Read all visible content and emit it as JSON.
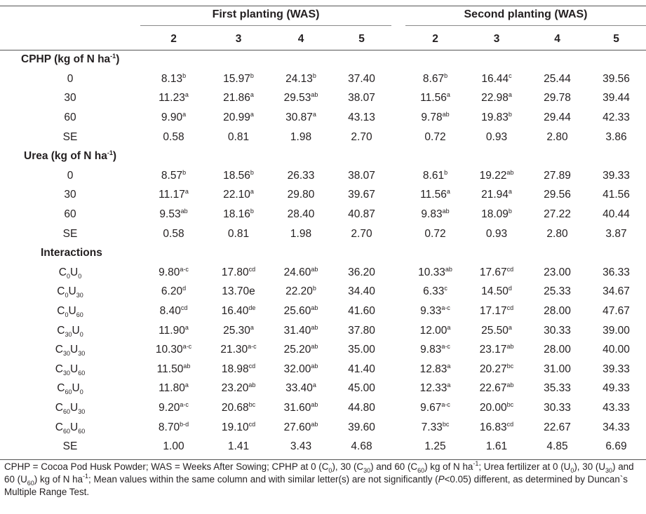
{
  "header": {
    "group1": "First planting (WAS)",
    "group2": "Second planting (WAS)",
    "weeks": [
      "2",
      "3",
      "4",
      "5",
      "2",
      "3",
      "4",
      "5"
    ]
  },
  "sections": [
    {
      "title": "CPHP (kg of N ha",
      "title_sup": "-1",
      "title_end": ")",
      "rows": [
        {
          "label": [
            "0"
          ],
          "cells": [
            [
              "8.13",
              "b"
            ],
            [
              "15.97",
              "b"
            ],
            [
              "24.13",
              "b"
            ],
            [
              "37.40",
              ""
            ],
            [
              "8.67",
              "b"
            ],
            [
              "16.44",
              "c"
            ],
            [
              "25.44",
              ""
            ],
            [
              "39.56",
              ""
            ]
          ]
        },
        {
          "label": [
            "30"
          ],
          "cells": [
            [
              "11.23",
              "a"
            ],
            [
              "21.86",
              "a"
            ],
            [
              "29.53",
              "ab"
            ],
            [
              "38.07",
              ""
            ],
            [
              "11.56",
              "a"
            ],
            [
              "22.98",
              "a"
            ],
            [
              "29.78",
              ""
            ],
            [
              "39.44",
              ""
            ]
          ]
        },
        {
          "label": [
            "60"
          ],
          "cells": [
            [
              "9.90",
              "a"
            ],
            [
              "20.99",
              "a"
            ],
            [
              "30.87",
              "a"
            ],
            [
              "43.13",
              ""
            ],
            [
              "9.78",
              "ab"
            ],
            [
              "19.83",
              "b"
            ],
            [
              "29.44",
              ""
            ],
            [
              "42.33",
              ""
            ]
          ]
        },
        {
          "label": [
            "SE"
          ],
          "cells": [
            [
              "0.58",
              ""
            ],
            [
              "0.81",
              ""
            ],
            [
              "1.98",
              ""
            ],
            [
              "2.70",
              ""
            ],
            [
              "0.72",
              ""
            ],
            [
              "0.93",
              ""
            ],
            [
              "2.80",
              ""
            ],
            [
              "3.86",
              ""
            ]
          ]
        }
      ]
    },
    {
      "title": "Urea (kg of N ha",
      "title_sup": "-1",
      "title_end": ")",
      "rows": [
        {
          "label": [
            "0"
          ],
          "cells": [
            [
              "8.57",
              "b"
            ],
            [
              "18.56",
              "b"
            ],
            [
              "26.33",
              ""
            ],
            [
              "38.07",
              ""
            ],
            [
              "8.61",
              "b"
            ],
            [
              "19.22",
              "ab"
            ],
            [
              "27.89",
              ""
            ],
            [
              "39.33",
              ""
            ]
          ]
        },
        {
          "label": [
            "30"
          ],
          "cells": [
            [
              "11.17",
              "a"
            ],
            [
              "22.10",
              "a"
            ],
            [
              "29.80",
              ""
            ],
            [
              "39.67",
              ""
            ],
            [
              "11.56",
              "a"
            ],
            [
              "21.94",
              "a"
            ],
            [
              "29.56",
              ""
            ],
            [
              "41.56",
              ""
            ]
          ]
        },
        {
          "label": [
            "60"
          ],
          "cells": [
            [
              "9.53",
              "ab"
            ],
            [
              "18.16",
              "b"
            ],
            [
              "28.40",
              ""
            ],
            [
              "40.87",
              ""
            ],
            [
              "9.83",
              "ab"
            ],
            [
              "18.09",
              "b"
            ],
            [
              "27.22",
              ""
            ],
            [
              "40.44",
              ""
            ]
          ]
        },
        {
          "label": [
            "SE"
          ],
          "cells": [
            [
              "0.58",
              ""
            ],
            [
              "0.81",
              ""
            ],
            [
              "1.98",
              ""
            ],
            [
              "2.70",
              ""
            ],
            [
              "0.72",
              ""
            ],
            [
              "0.93",
              ""
            ],
            [
              "2.80",
              ""
            ],
            [
              "3.87",
              ""
            ]
          ]
        }
      ]
    },
    {
      "title": "Interactions",
      "title_sup": "",
      "title_end": "",
      "rows": [
        {
          "label": [
            "C",
            "0",
            "U",
            "0"
          ],
          "cells": [
            [
              "9.80",
              "a-c"
            ],
            [
              "17.80",
              "cd"
            ],
            [
              "24.60",
              "ab"
            ],
            [
              "36.20",
              ""
            ],
            [
              "10.33",
              "ab"
            ],
            [
              "17.67",
              "cd"
            ],
            [
              "23.00",
              ""
            ],
            [
              "36.33",
              ""
            ]
          ]
        },
        {
          "label": [
            "C",
            "0",
            "U",
            "30"
          ],
          "cells": [
            [
              "6.20",
              "d"
            ],
            [
              "13.70e",
              ""
            ],
            [
              "22.20",
              "b"
            ],
            [
              "34.40",
              ""
            ],
            [
              "6.33",
              "c"
            ],
            [
              "14.50",
              "d"
            ],
            [
              "25.33",
              ""
            ],
            [
              "34.67",
              ""
            ]
          ]
        },
        {
          "label": [
            "C",
            "0",
            "U",
            "60"
          ],
          "cells": [
            [
              "8.40",
              "cd"
            ],
            [
              "16.40",
              "de"
            ],
            [
              "25.60",
              "ab"
            ],
            [
              "41.60",
              ""
            ],
            [
              "9.33",
              "a-c"
            ],
            [
              "17.17",
              "cd"
            ],
            [
              "28.00",
              ""
            ],
            [
              "47.67",
              ""
            ]
          ]
        },
        {
          "label": [
            "C",
            "30",
            "U",
            "0"
          ],
          "cells": [
            [
              "11.90",
              "a"
            ],
            [
              "25.30",
              "a"
            ],
            [
              "31.40",
              "ab"
            ],
            [
              "37.80",
              ""
            ],
            [
              "12.00",
              "a"
            ],
            [
              "25.50",
              "a"
            ],
            [
              "30.33",
              ""
            ],
            [
              "39.00",
              ""
            ]
          ]
        },
        {
          "label": [
            "C",
            "30",
            "U",
            "30"
          ],
          "cells": [
            [
              "10.30",
              "a-c"
            ],
            [
              "21.30",
              "a-c"
            ],
            [
              "25.20",
              "ab"
            ],
            [
              "35.00",
              ""
            ],
            [
              "9.83",
              "a-c"
            ],
            [
              "23.17",
              "ab"
            ],
            [
              "28.00",
              ""
            ],
            [
              "40.00",
              ""
            ]
          ]
        },
        {
          "label": [
            "C",
            "30",
            "U",
            "60"
          ],
          "cells": [
            [
              "11.50",
              "ab"
            ],
            [
              "18.98",
              "cd"
            ],
            [
              "32.00",
              "ab"
            ],
            [
              "41.40",
              ""
            ],
            [
              "12.83",
              "a"
            ],
            [
              "20.27",
              "bc"
            ],
            [
              "31.00",
              ""
            ],
            [
              "39.33",
              ""
            ]
          ]
        },
        {
          "label": [
            "C",
            "60",
            "U",
            "0"
          ],
          "cells": [
            [
              "11.80",
              "a"
            ],
            [
              "23.20",
              "ab"
            ],
            [
              "33.40",
              "a"
            ],
            [
              "45.00",
              ""
            ],
            [
              "12.33",
              "a"
            ],
            [
              "22.67",
              "ab"
            ],
            [
              "35.33",
              ""
            ],
            [
              "49.33",
              ""
            ]
          ]
        },
        {
          "label": [
            "C",
            "60",
            "U",
            "30"
          ],
          "cells": [
            [
              "9.20",
              "a-c"
            ],
            [
              "20.68",
              "bc"
            ],
            [
              "31.60",
              "ab"
            ],
            [
              "44.80",
              ""
            ],
            [
              "9.67",
              "a-c"
            ],
            [
              "20.00",
              "bc"
            ],
            [
              "30.33",
              ""
            ],
            [
              "43.33",
              ""
            ]
          ]
        },
        {
          "label": [
            "C",
            "60",
            "U",
            "60"
          ],
          "cells": [
            [
              "8.70",
              "b-d"
            ],
            [
              "19.10",
              "cd"
            ],
            [
              "27.60",
              "ab"
            ],
            [
              "39.60",
              ""
            ],
            [
              "7.33",
              "bc"
            ],
            [
              "16.83",
              "cd"
            ],
            [
              "22.67",
              ""
            ],
            [
              "34.33",
              ""
            ]
          ]
        },
        {
          "label": [
            "SE"
          ],
          "cells": [
            [
              "1.00",
              ""
            ],
            [
              "1.41",
              ""
            ],
            [
              "3.43",
              ""
            ],
            [
              "4.68",
              ""
            ],
            [
              "1.25",
              ""
            ],
            [
              "1.61",
              ""
            ],
            [
              "4.85",
              ""
            ],
            [
              "6.69",
              ""
            ]
          ]
        }
      ]
    }
  ],
  "footnote": [
    [
      "t",
      "CPHP = Cocoa Pod Husk Powder; WAS = Weeks After Sowing; CPHP at 0 (C"
    ],
    [
      "sub",
      "0"
    ],
    [
      "t",
      "), 30 (C"
    ],
    [
      "sub",
      "30"
    ],
    [
      "t",
      ") and 60 (C"
    ],
    [
      "sub",
      "60"
    ],
    [
      "t",
      ") kg of N ha"
    ],
    [
      "sup",
      "-1"
    ],
    [
      "t",
      "; Urea fertilizer at 0 (U"
    ],
    [
      "sub",
      "0"
    ],
    [
      "t",
      "), 30 (U"
    ],
    [
      "sub",
      "30"
    ],
    [
      "t",
      ") and 60 (U"
    ],
    [
      "sub",
      "60"
    ],
    [
      "t",
      ") kg of N ha"
    ],
    [
      "sup",
      "-1"
    ],
    [
      "t",
      "; Mean values within the same column and with similar letter(s) are not significantly ("
    ],
    [
      "i",
      "P"
    ],
    [
      "t",
      "<0.05) different, as determined by Duncan`s Multiple Range Test."
    ]
  ]
}
